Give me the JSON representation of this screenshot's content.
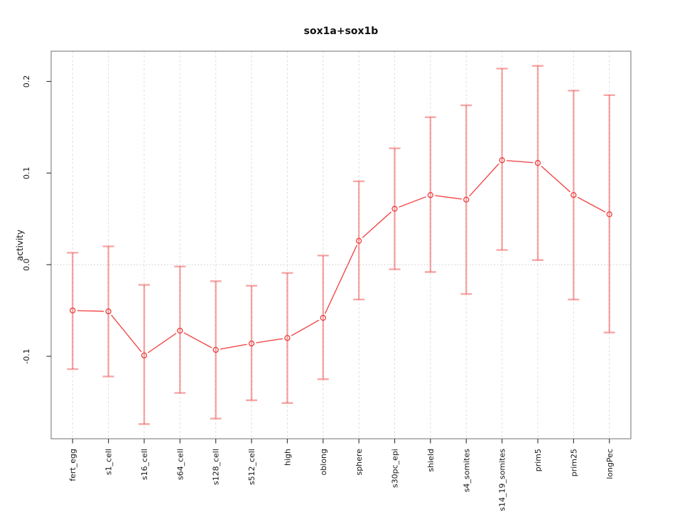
{
  "figure": {
    "background": "#ffffff"
  },
  "chart_data": {
    "type": "line",
    "title": "sox1a+sox1b",
    "xlabel": "",
    "ylabel": "activity",
    "categories": [
      "fert_egg",
      "s1_cell",
      "s16_cell",
      "s64_cell",
      "s128_cell",
      "s512_cell",
      "high",
      "oblong",
      "sphere",
      "s30pc_epi",
      "shield",
      "s4_somites",
      "s14_19_somites",
      "prim5",
      "prim25",
      "longPec"
    ],
    "series": [
      {
        "name": "sox1a+sox1b",
        "values": [
          -0.05,
          -0.051,
          -0.099,
          -0.072,
          -0.093,
          -0.086,
          -0.08,
          -0.058,
          0.026,
          0.061,
          0.076,
          0.071,
          0.114,
          0.111,
          0.076,
          0.055
        ],
        "error_low": [
          -0.114,
          -0.122,
          -0.174,
          -0.14,
          -0.168,
          -0.148,
          -0.151,
          -0.125,
          -0.038,
          -0.005,
          -0.008,
          -0.032,
          0.016,
          0.005,
          -0.038,
          -0.074
        ],
        "error_high": [
          0.013,
          0.02,
          -0.022,
          -0.002,
          -0.018,
          -0.023,
          -0.009,
          0.01,
          0.091,
          0.127,
          0.161,
          0.174,
          0.214,
          0.217,
          0.19,
          0.185
        ]
      }
    ],
    "yticks": [
      -0.1,
      0.0,
      0.1,
      0.2
    ],
    "ylim": [
      -0.19,
      0.233
    ],
    "legend": "none",
    "grid": {
      "vertical_dashed": true,
      "horizontal_zero_dotted": true
    },
    "marker": "open-circle",
    "colors": {
      "point": "#ee3c3c",
      "line": "#f14a4a",
      "error_bar": "rgba(240,80,80,0.5)",
      "gridline": "#dedede",
      "zero_line": "#cacaca",
      "frame": "#878787",
      "tick": "#3f3f3f",
      "text": "#161616"
    }
  }
}
